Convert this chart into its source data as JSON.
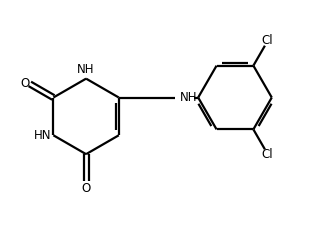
{
  "background_color": "#ffffff",
  "line_color": "#000000",
  "text_color": "#000000",
  "line_width": 1.6,
  "font_size": 8.5,
  "figsize": [
    3.29,
    2.36
  ],
  "dpi": 100,
  "xlim": [
    0,
    10
  ],
  "ylim": [
    0,
    7.2
  ]
}
